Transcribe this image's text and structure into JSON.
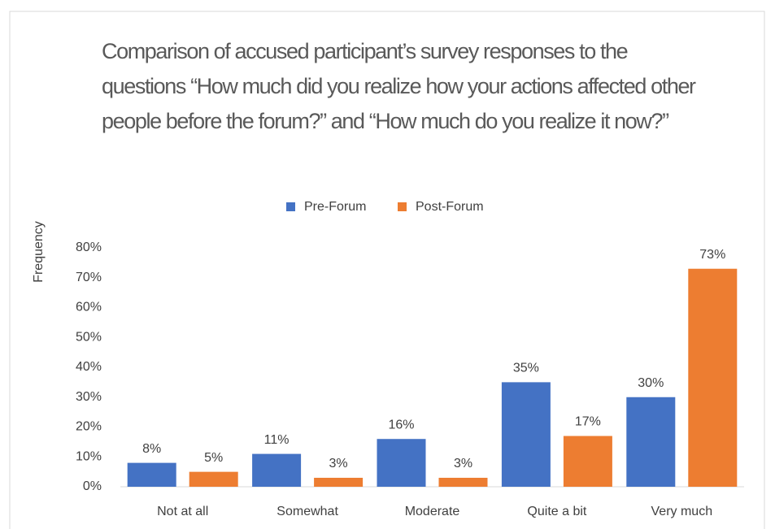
{
  "chart_data": {
    "type": "bar",
    "title": "Comparison of accused participant’s survey responses to the questions “How much did you realize how your actions affected other people before the forum?” and “How much do you realize it now?”",
    "y_label": "Frequency",
    "categories": [
      "Not at all",
      "Somewhat",
      "Moderate",
      "Quite a bit",
      "Very much"
    ],
    "series": [
      {
        "name": "Pre-Forum",
        "color": "#4472c4",
        "values": [
          8,
          11,
          16,
          35,
          30
        ],
        "value_labels": [
          "8%",
          "11%",
          "16%",
          "35%",
          "30%"
        ]
      },
      {
        "name": "Post-Forum",
        "color": "#ed7d31",
        "values": [
          5,
          3,
          3,
          17,
          73
        ],
        "value_labels": [
          "5%",
          "3%",
          "3%",
          "17%",
          "73%"
        ]
      }
    ],
    "ylim": [
      0,
      80
    ],
    "yticks": [
      {
        "value": 0,
        "label": "0%"
      },
      {
        "value": 10,
        "label": "10%"
      },
      {
        "value": 20,
        "label": "20%"
      },
      {
        "value": 30,
        "label": "30%"
      },
      {
        "value": 40,
        "label": "40%"
      },
      {
        "value": 50,
        "label": "50%"
      },
      {
        "value": 60,
        "label": "60%"
      },
      {
        "value": 70,
        "label": "70%"
      },
      {
        "value": 80,
        "label": "80%"
      }
    ],
    "legend": "top"
  }
}
